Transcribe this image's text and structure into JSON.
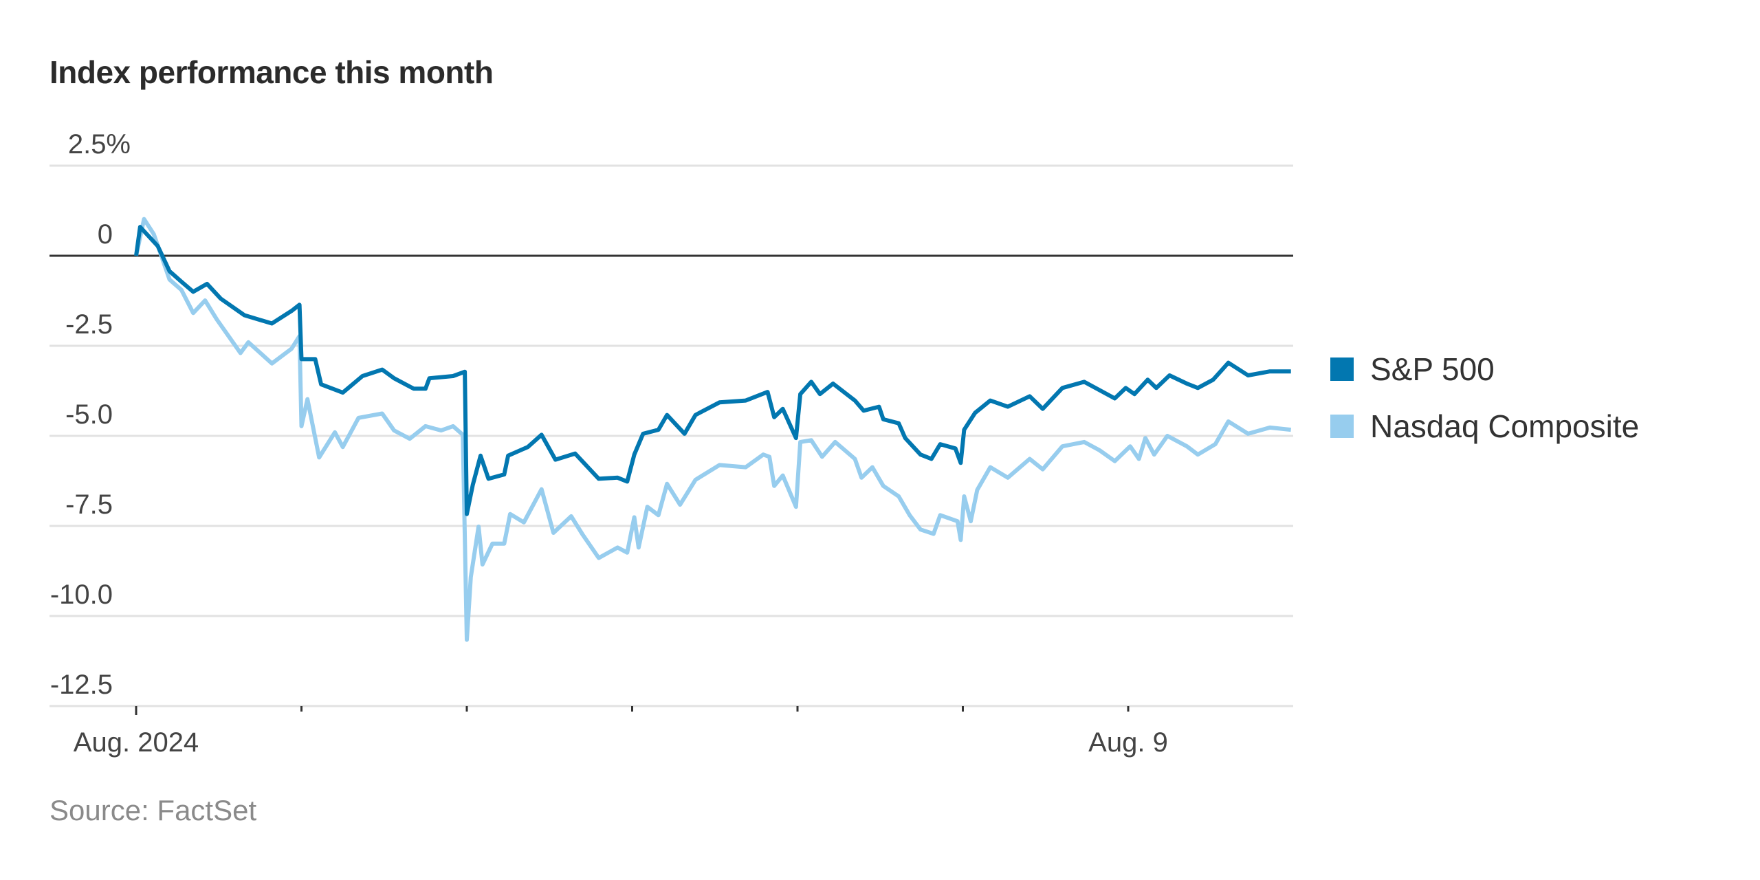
{
  "chart_data": {
    "type": "line",
    "title": "Index performance this month",
    "source": "Source: FactSet",
    "xlabel": "",
    "ylabel": "",
    "x_unit": "trading day index (0 = Aug. 1, 2024)",
    "xlim": [
      0,
      7
    ],
    "ylim": [
      -12.5,
      2.5
    ],
    "grid": true,
    "legend_position": "right",
    "y_ticks": [
      {
        "value": 2.5,
        "label": "2.5%"
      },
      {
        "value": 0,
        "label": "0"
      },
      {
        "value": -2.5,
        "label": "-2.5"
      },
      {
        "value": -5,
        "label": "-5.0"
      },
      {
        "value": -7.5,
        "label": "-7.5"
      },
      {
        "value": -10,
        "label": "-10.0"
      },
      {
        "value": -12.5,
        "label": "-12.5"
      }
    ],
    "x_ticks": [
      {
        "value": 0,
        "label": "Aug. 2024"
      },
      {
        "value": 1,
        "label": ""
      },
      {
        "value": 2,
        "label": ""
      },
      {
        "value": 3,
        "label": ""
      },
      {
        "value": 4,
        "label": ""
      },
      {
        "value": 5,
        "label": ""
      },
      {
        "value": 6,
        "label": "Aug. 9"
      }
    ],
    "series": [
      {
        "name": "S&P 500",
        "color": "#0277b0",
        "points": [
          [
            0,
            0
          ],
          [
            0.024,
            0.8
          ],
          [
            0.131,
            0.27
          ],
          [
            0.202,
            -0.43
          ],
          [
            0.274,
            -0.72
          ],
          [
            0.345,
            -1.0
          ],
          [
            0.429,
            -0.78
          ],
          [
            0.512,
            -1.19
          ],
          [
            0.655,
            -1.65
          ],
          [
            0.821,
            -1.88
          ],
          [
            0.94,
            -1.53
          ],
          [
            0.988,
            -1.36
          ],
          [
            1.0,
            -2.87
          ],
          [
            1.083,
            -2.87
          ],
          [
            1.119,
            -3.57
          ],
          [
            1.25,
            -3.8
          ],
          [
            1.369,
            -3.34
          ],
          [
            1.488,
            -3.16
          ],
          [
            1.56,
            -3.4
          ],
          [
            1.679,
            -3.69
          ],
          [
            1.75,
            -3.69
          ],
          [
            1.774,
            -3.4
          ],
          [
            1.917,
            -3.34
          ],
          [
            1.988,
            -3.22
          ],
          [
            2.0,
            -7.17
          ],
          [
            2.036,
            -6.36
          ],
          [
            2.083,
            -5.55
          ],
          [
            2.131,
            -6.19
          ],
          [
            2.226,
            -6.07
          ],
          [
            2.25,
            -5.55
          ],
          [
            2.369,
            -5.31
          ],
          [
            2.452,
            -4.97
          ],
          [
            2.536,
            -5.66
          ],
          [
            2.655,
            -5.49
          ],
          [
            2.798,
            -6.19
          ],
          [
            2.912,
            -6.16
          ],
          [
            2.97,
            -6.27
          ],
          [
            3.013,
            -5.52
          ],
          [
            3.066,
            -4.94
          ],
          [
            3.159,
            -4.83
          ],
          [
            3.211,
            -4.42
          ],
          [
            3.317,
            -4.94
          ],
          [
            3.383,
            -4.42
          ],
          [
            3.528,
            -4.07
          ],
          [
            3.687,
            -4.02
          ],
          [
            3.819,
            -3.78
          ],
          [
            3.859,
            -4.48
          ],
          [
            3.911,
            -4.25
          ],
          [
            3.991,
            -5.06
          ],
          [
            4.017,
            -3.84
          ],
          [
            4.083,
            -3.5
          ],
          [
            4.136,
            -3.84
          ],
          [
            4.215,
            -3.55
          ],
          [
            4.347,
            -4.02
          ],
          [
            4.4,
            -4.3
          ],
          [
            4.493,
            -4.19
          ],
          [
            4.519,
            -4.54
          ],
          [
            4.612,
            -4.65
          ],
          [
            4.651,
            -5.06
          ],
          [
            4.744,
            -5.52
          ],
          [
            4.81,
            -5.64
          ],
          [
            4.863,
            -5.23
          ],
          [
            4.955,
            -5.35
          ],
          [
            4.987,
            -5.75
          ],
          [
            5.008,
            -4.83
          ],
          [
            5.074,
            -4.36
          ],
          [
            5.166,
            -4.02
          ],
          [
            5.272,
            -4.19
          ],
          [
            5.404,
            -3.9
          ],
          [
            5.483,
            -4.25
          ],
          [
            5.602,
            -3.67
          ],
          [
            5.734,
            -3.5
          ],
          [
            5.827,
            -3.73
          ],
          [
            5.919,
            -3.96
          ],
          [
            5.985,
            -3.67
          ],
          [
            6.038,
            -3.84
          ],
          [
            6.118,
            -3.44
          ],
          [
            6.17,
            -3.67
          ],
          [
            6.25,
            -3.32
          ],
          [
            6.355,
            -3.55
          ],
          [
            6.421,
            -3.67
          ],
          [
            6.514,
            -3.44
          ],
          [
            6.606,
            -2.97
          ],
          [
            6.725,
            -3.32
          ],
          [
            6.857,
            -3.21
          ],
          [
            6.984,
            -3.21
          ]
        ]
      },
      {
        "name": "Nasdaq Composite",
        "color": "#97cdee",
        "points": [
          [
            0,
            0
          ],
          [
            0.048,
            1.02
          ],
          [
            0.107,
            0.6
          ],
          [
            0.202,
            -0.66
          ],
          [
            0.274,
            -0.95
          ],
          [
            0.345,
            -1.59
          ],
          [
            0.417,
            -1.24
          ],
          [
            0.488,
            -1.77
          ],
          [
            0.631,
            -2.7
          ],
          [
            0.679,
            -2.4
          ],
          [
            0.821,
            -2.99
          ],
          [
            0.94,
            -2.58
          ],
          [
            0.988,
            -2.23
          ],
          [
            1.0,
            -4.73
          ],
          [
            1.036,
            -3.98
          ],
          [
            1.107,
            -5.6
          ],
          [
            1.202,
            -4.9
          ],
          [
            1.25,
            -5.31
          ],
          [
            1.345,
            -4.5
          ],
          [
            1.488,
            -4.38
          ],
          [
            1.56,
            -4.85
          ],
          [
            1.655,
            -5.08
          ],
          [
            1.75,
            -4.73
          ],
          [
            1.845,
            -4.85
          ],
          [
            1.917,
            -4.73
          ],
          [
            1.976,
            -4.97
          ],
          [
            2.0,
            -10.66
          ],
          [
            2.024,
            -8.92
          ],
          [
            2.071,
            -7.52
          ],
          [
            2.095,
            -8.57
          ],
          [
            2.155,
            -7.99
          ],
          [
            2.226,
            -7.99
          ],
          [
            2.262,
            -7.17
          ],
          [
            2.345,
            -7.4
          ],
          [
            2.452,
            -6.48
          ],
          [
            2.524,
            -7.69
          ],
          [
            2.631,
            -7.23
          ],
          [
            2.702,
            -7.75
          ],
          [
            2.798,
            -8.39
          ],
          [
            2.912,
            -8.1
          ],
          [
            2.97,
            -8.24
          ],
          [
            3.013,
            -7.26
          ],
          [
            3.039,
            -8.1
          ],
          [
            3.092,
            -6.97
          ],
          [
            3.159,
            -7.2
          ],
          [
            3.211,
            -6.33
          ],
          [
            3.29,
            -6.91
          ],
          [
            3.383,
            -6.22
          ],
          [
            3.528,
            -5.81
          ],
          [
            3.687,
            -5.87
          ],
          [
            3.793,
            -5.52
          ],
          [
            3.83,
            -5.58
          ],
          [
            3.859,
            -6.39
          ],
          [
            3.911,
            -6.1
          ],
          [
            3.991,
            -6.97
          ],
          [
            4.017,
            -5.17
          ],
          [
            4.083,
            -5.12
          ],
          [
            4.149,
            -5.58
          ],
          [
            4.228,
            -5.17
          ],
          [
            4.347,
            -5.64
          ],
          [
            4.387,
            -6.16
          ],
          [
            4.453,
            -5.87
          ],
          [
            4.519,
            -6.39
          ],
          [
            4.612,
            -6.68
          ],
          [
            4.678,
            -7.2
          ],
          [
            4.744,
            -7.6
          ],
          [
            4.823,
            -7.72
          ],
          [
            4.863,
            -7.2
          ],
          [
            4.968,
            -7.37
          ],
          [
            4.987,
            -7.89
          ],
          [
            5.008,
            -6.68
          ],
          [
            5.048,
            -7.37
          ],
          [
            5.087,
            -6.5
          ],
          [
            5.166,
            -5.87
          ],
          [
            5.272,
            -6.16
          ],
          [
            5.404,
            -5.64
          ],
          [
            5.483,
            -5.93
          ],
          [
            5.602,
            -5.29
          ],
          [
            5.734,
            -5.17
          ],
          [
            5.827,
            -5.4
          ],
          [
            5.919,
            -5.7
          ],
          [
            6.012,
            -5.29
          ],
          [
            6.065,
            -5.64
          ],
          [
            6.104,
            -5.06
          ],
          [
            6.157,
            -5.52
          ],
          [
            6.237,
            -5.0
          ],
          [
            6.355,
            -5.29
          ],
          [
            6.421,
            -5.52
          ],
          [
            6.527,
            -5.23
          ],
          [
            6.606,
            -4.6
          ],
          [
            6.725,
            -4.94
          ],
          [
            6.857,
            -4.77
          ],
          [
            6.984,
            -4.83
          ]
        ]
      }
    ]
  }
}
